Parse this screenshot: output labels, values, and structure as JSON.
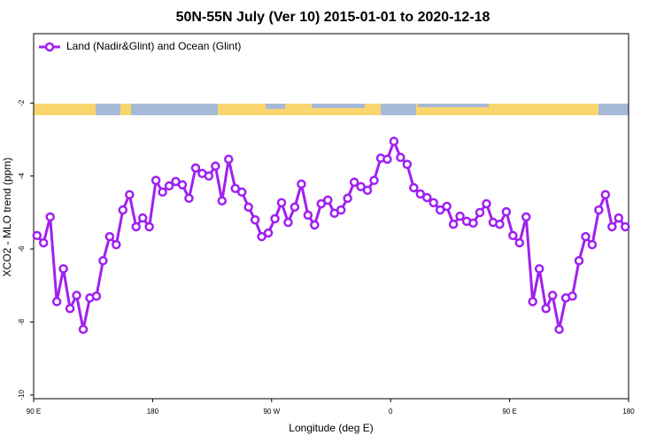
{
  "chart_data": {
    "type": "line",
    "title": "50N-55N July (Ver 10)   2015-01-01 to 2020-12-18",
    "x_label": "Longitude (deg E)",
    "y_label": "XCO2 - MLO trend (ppm)",
    "xlim": [
      90,
      540
    ],
    "ylim": [
      -10.1,
      -0.1
    ],
    "xticks": [
      {
        "value": 90,
        "label": "90 E"
      },
      180,
      {
        "value": 270,
        "label": "90 W"
      },
      {
        "value": 360,
        "label": "0"
      },
      {
        "value": 450,
        "label": "90 E"
      },
      {
        "value": 540,
        "label": "180"
      }
    ],
    "yticks": [
      -10,
      -8,
      -6,
      -4,
      -2
    ],
    "legend": "upper left",
    "series": [
      {
        "name": "Land (Nadir&Glint) and Ocean (Glint)",
        "color": "#a020f0",
        "x": [
          92.5,
          97.5,
          102.5,
          107.5,
          112.5,
          117.5,
          122.5,
          127.5,
          132.5,
          137.5,
          142.5,
          147.5,
          152.5,
          157.5,
          162.5,
          167.5,
          172.5,
          177.5,
          182.5,
          187.5,
          192.5,
          197.5,
          202.5,
          207.5,
          212.5,
          217.5,
          222.5,
          227.5,
          232.5,
          237.5,
          242.5,
          247.5,
          252.5,
          257.5,
          262.5,
          267.5,
          272.5,
          277.5,
          282.5,
          287.5,
          292.5,
          297.5,
          302.5,
          307.5,
          312.5,
          317.5,
          322.5,
          327.5,
          332.5,
          337.5,
          342.5,
          347.5,
          352.5,
          357.5,
          362.5,
          367.5,
          372.5,
          377.5,
          382.5,
          387.5,
          392.5,
          397.5,
          402.5,
          407.5,
          412.5,
          417.5,
          422.5,
          427.5,
          432.5,
          437.5,
          442.5,
          447.5,
          452.5,
          457.5,
          462.5,
          467.5,
          472.5,
          477.5,
          482.5,
          487.5,
          492.5,
          497.5,
          502.5,
          507.5,
          512.5,
          517.5,
          522.5,
          527.5,
          532.5,
          537.5
        ],
        "values": [
          -5.63,
          -5.83,
          -5.12,
          -7.44,
          -6.54,
          -7.63,
          -7.27,
          -8.2,
          -7.34,
          -7.29,
          -6.32,
          -5.66,
          -5.88,
          -4.93,
          -4.51,
          -5.39,
          -5.15,
          -5.39,
          -4.12,
          -4.44,
          -4.27,
          -4.15,
          -4.24,
          -4.61,
          -3.78,
          -3.93,
          -4.0,
          -3.73,
          -4.68,
          -3.54,
          -4.34,
          -4.44,
          -4.85,
          -5.2,
          -5.66,
          -5.56,
          -5.17,
          -4.73,
          -5.27,
          -4.85,
          -4.22,
          -5.07,
          -5.34,
          -4.76,
          -4.66,
          -5.02,
          -4.93,
          -4.61,
          -4.17,
          -4.29,
          -4.39,
          -4.12,
          -3.51,
          -3.54,
          -3.05,
          -3.49,
          -3.68,
          -4.32,
          -4.49,
          -4.59,
          -4.73,
          -4.93,
          -4.83,
          -5.32,
          -5.1,
          -5.24,
          -5.29,
          -5.0,
          -4.76,
          -5.27,
          -5.32,
          -4.98,
          -5.63,
          -5.83,
          -5.12,
          -7.44,
          -6.54,
          -7.63,
          -7.27,
          -8.2,
          -7.34,
          -7.29,
          -6.32,
          -5.66,
          -5.88,
          -4.93,
          -4.51,
          -5.39,
          -5.15,
          -5.39
        ]
      }
    ]
  }
}
